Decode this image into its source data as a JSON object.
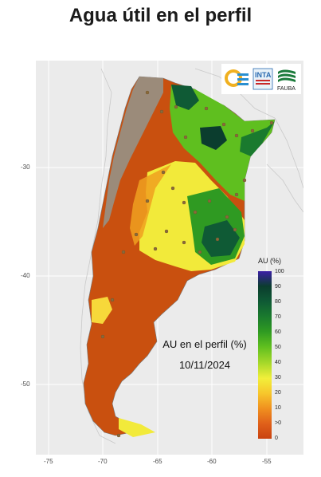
{
  "title": "Agua útil en el perfil",
  "map": {
    "overlay_title": "AU en el perfil (%)",
    "date": "10/11/2024",
    "x_ticks": [
      "-75",
      "-70",
      "-65",
      "-60",
      "-55"
    ],
    "y_ticks": [
      "-30",
      "-40",
      "-50"
    ]
  },
  "logos": {
    "inta": "INTA",
    "fauba": "FAUBA"
  },
  "legend": {
    "title": "AU (%)",
    "labels": [
      "100",
      "90",
      "80",
      "70",
      "60",
      "50",
      "40",
      "30",
      "20",
      "10",
      ">0",
      "0"
    ],
    "colors": [
      "#3b1fa6",
      "#0b3d2e",
      "#0f5a35",
      "#1a7a2e",
      "#2f9a22",
      "#5fbf1f",
      "#a8d92a",
      "#f2ef3a",
      "#f7c62c",
      "#f0901f",
      "#e0601a",
      "#c9420f"
    ]
  },
  "colors": {
    "panel": "#ebebeb",
    "no_data": "#9b8b7a"
  }
}
